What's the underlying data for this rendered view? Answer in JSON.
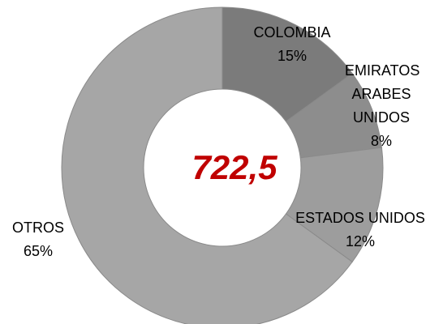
{
  "chart_data": {
    "type": "donut",
    "center_text": "722,5",
    "categories": [
      "COLOMBIA",
      "EMIRATOS ARABES UNIDOS",
      "ESTADOS UNIDOS",
      "OTROS"
    ],
    "values": [
      15,
      8,
      12,
      65
    ],
    "value_labels": [
      "15%",
      "8%",
      "12%",
      "65%"
    ],
    "colors": [
      "#7b7b7b",
      "#8d8d8d",
      "#9d9d9d",
      "#a6a6a6"
    ]
  }
}
